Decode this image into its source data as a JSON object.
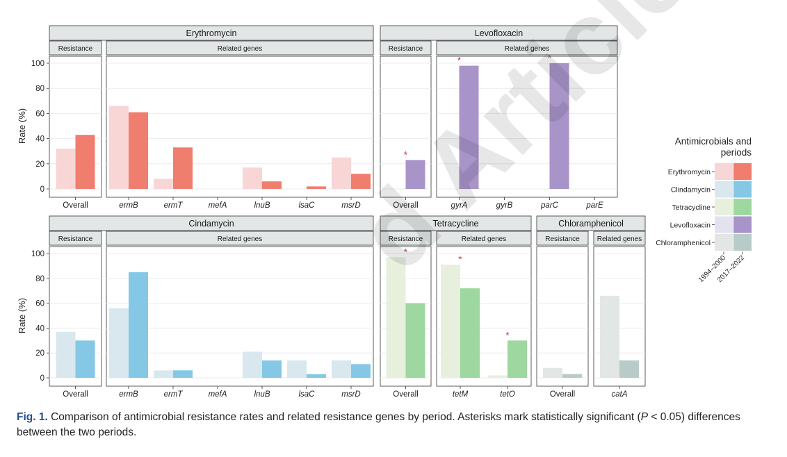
{
  "caption": {
    "fig_label": "Fig. 1.",
    "text_a": "Comparison of antimicrobial resistance rates and related resistance genes by period. Asterisks mark statistically significant (",
    "p_symbol": "P",
    "text_b": " < 0.05) differences between the two periods."
  },
  "watermark": "d Article",
  "legend": {
    "title_line1": "Antimicrobials and",
    "title_line2": "periods",
    "rows": [
      {
        "label": "Erythromycin",
        "light": "#f7d6d5",
        "dark": "#f07e6e"
      },
      {
        "label": "Clindamycin",
        "light": "#d9e8ee",
        "dark": "#84c8e6"
      },
      {
        "label": "Tetracycline",
        "light": "#e6f0dd",
        "dark": "#9ed7a0"
      },
      {
        "label": "Levofloxacin",
        "light": "#e5e2ef",
        "dark": "#a894c9"
      },
      {
        "label": "Chloramphenicol",
        "light": "#e2e6e5",
        "dark": "#b9cbc8"
      }
    ],
    "periods": [
      "1994–2000",
      "2017–2022"
    ]
  },
  "chart_data": {
    "type": "bar",
    "ylabel": "Rate (%)",
    "ylim": [
      0,
      100
    ],
    "yticks": [
      0,
      20,
      40,
      60,
      80,
      100
    ],
    "series": [
      {
        "name": "1994–2000"
      },
      {
        "name": "2017–2022"
      }
    ],
    "groups": [
      {
        "antimicrobial": "Erythromycin",
        "colors": {
          "light": "#f7d6d5",
          "dark": "#f07e6e"
        },
        "panels": [
          {
            "label": "Resistance",
            "categories": [
              "Overall"
            ],
            "values_1994_2000": [
              32
            ],
            "values_2017_2022": [
              43
            ],
            "significant": [
              false
            ]
          },
          {
            "label": "Related genes",
            "categories": [
              "ermB",
              "ermT",
              "mefA",
              "lnuB",
              "lsaC",
              "msrD"
            ],
            "values_1994_2000": [
              66,
              8,
              0,
              17,
              0,
              25
            ],
            "values_2017_2022": [
              61,
              33,
              0,
              6,
              2,
              12
            ],
            "significant": [
              false,
              false,
              false,
              false,
              false,
              false
            ]
          }
        ]
      },
      {
        "antimicrobial": "Levofloxacin",
        "colors": {
          "light": "#e5e2ef",
          "dark": "#a894c9"
        },
        "panels": [
          {
            "label": "Resistance",
            "categories": [
              "Overall"
            ],
            "values_1994_2000": [
              0
            ],
            "values_2017_2022": [
              23
            ],
            "significant": [
              true
            ]
          },
          {
            "label": "Related genes",
            "categories": [
              "gyrA",
              "gyrB",
              "parC",
              "parE"
            ],
            "values_1994_2000": [
              0,
              0,
              0,
              0
            ],
            "values_2017_2022": [
              98,
              0,
              100,
              0
            ],
            "significant": [
              true,
              false,
              true,
              false
            ]
          }
        ]
      },
      {
        "antimicrobial": "Cindamycin",
        "colors": {
          "light": "#d9e8ee",
          "dark": "#84c8e6"
        },
        "panels": [
          {
            "label": "Resistance",
            "categories": [
              "Overall"
            ],
            "values_1994_2000": [
              37
            ],
            "values_2017_2022": [
              30
            ],
            "significant": [
              false
            ]
          },
          {
            "label": "Related genes",
            "categories": [
              "ermB",
              "ermT",
              "mefA",
              "lnuB",
              "lsaC",
              "msrD"
            ],
            "values_1994_2000": [
              56,
              6,
              0,
              21,
              14,
              14
            ],
            "values_2017_2022": [
              85,
              6,
              0,
              14,
              3,
              11
            ],
            "significant": [
              false,
              false,
              false,
              false,
              false,
              false
            ]
          }
        ]
      },
      {
        "antimicrobial": "Tetracycline",
        "colors": {
          "light": "#e6f0dd",
          "dark": "#9ed7a0"
        },
        "panels": [
          {
            "label": "Resistance",
            "categories": [
              "Overall"
            ],
            "values_1994_2000": [
              97
            ],
            "values_2017_2022": [
              60
            ],
            "significant": [
              true
            ]
          },
          {
            "label": "Related genes",
            "categories": [
              "tetM",
              "tetO"
            ],
            "values_1994_2000": [
              91,
              2
            ],
            "values_2017_2022": [
              72,
              30
            ],
            "significant": [
              true,
              true
            ]
          }
        ]
      },
      {
        "antimicrobial": "Chloramphenicol",
        "colors": {
          "light": "#e2e6e5",
          "dark": "#b9cbc8"
        },
        "panels": [
          {
            "label": "Resistance",
            "categories": [
              "Overall"
            ],
            "values_1994_2000": [
              8
            ],
            "values_2017_2022": [
              3
            ],
            "significant": [
              false
            ]
          },
          {
            "label": "Related genes",
            "categories": [
              "catA"
            ],
            "values_1994_2000": [
              66
            ],
            "values_2017_2022": [
              14
            ],
            "significant": [
              false
            ]
          }
        ]
      }
    ]
  }
}
